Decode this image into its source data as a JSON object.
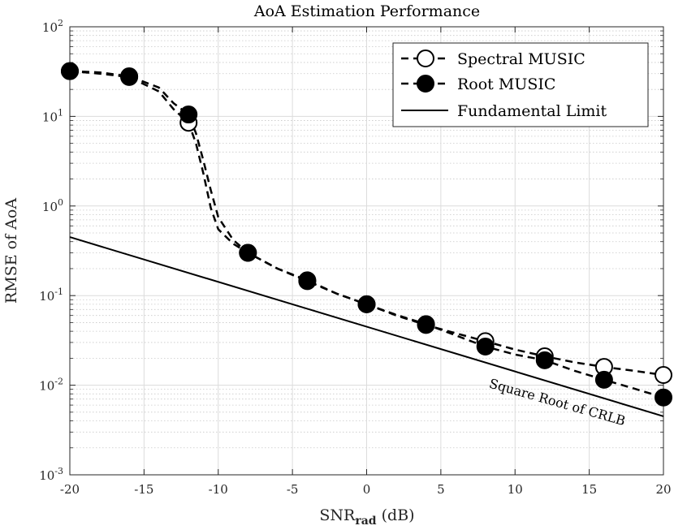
{
  "chart_data": {
    "type": "line",
    "title": "AoA Estimation Performance",
    "xlabel_main": "SNR",
    "xlabel_sub": "rad",
    "xlabel_unit": " (dB)",
    "ylabel": "RMSE of AoA",
    "xlim": [
      -20,
      20
    ],
    "ylim": [
      0.001,
      100
    ],
    "yscale": "log",
    "grid": true,
    "legend_position": "top-right",
    "x_ticks": [
      -20,
      -15,
      -10,
      -5,
      0,
      5,
      10,
      15,
      20
    ],
    "x_tick_labels": [
      "-20",
      "-15",
      "-10",
      "-5",
      "0",
      "5",
      "10",
      "15",
      "20"
    ],
    "y_ticks": [
      {
        "base": "10",
        "exp": "2",
        "value": 100
      },
      {
        "base": "10",
        "exp": "1",
        "value": 10
      },
      {
        "base": "10",
        "exp": "0",
        "value": 1
      },
      {
        "base": "10",
        "exp": "-1",
        "value": 0.1
      },
      {
        "base": "10",
        "exp": "-2",
        "value": 0.01
      },
      {
        "base": "10",
        "exp": "-3",
        "value": 0.001
      }
    ],
    "series": [
      {
        "name": "Spectral MUSIC",
        "style": "dashed",
        "marker": "open-circle",
        "x": [
          -20,
          -16,
          -12,
          -8,
          -4,
          0,
          4,
          8,
          12,
          16,
          20
        ],
        "y": [
          32,
          27.5,
          8.5,
          0.3,
          0.145,
          0.08,
          0.047,
          0.031,
          0.021,
          0.016,
          0.013
        ],
        "curve_x": [
          -20,
          -18,
          -16,
          -14,
          -13,
          -12,
          -11.5,
          -11,
          -10.5,
          -10,
          -9,
          -8,
          -6,
          -4,
          -2,
          0,
          2,
          4,
          6,
          8,
          10,
          12,
          14,
          16,
          18,
          20
        ],
        "curve_y": [
          32,
          30,
          27.5,
          19,
          12,
          8.5,
          5,
          2.3,
          0.95,
          0.55,
          0.38,
          0.3,
          0.2,
          0.145,
          0.105,
          0.08,
          0.06,
          0.047,
          0.038,
          0.031,
          0.025,
          0.021,
          0.018,
          0.016,
          0.0145,
          0.013
        ]
      },
      {
        "name": "Root MUSIC",
        "style": "dashed",
        "marker": "filled-circle",
        "x": [
          -20,
          -16,
          -12,
          -8,
          -4,
          0,
          4,
          8,
          12,
          16,
          20
        ],
        "y": [
          32,
          28,
          10.5,
          0.3,
          0.148,
          0.08,
          0.048,
          0.027,
          0.019,
          0.0115,
          0.0073
        ],
        "curve_x": [
          -20,
          -18,
          -16,
          -14,
          -13,
          -12,
          -11.5,
          -11,
          -10.5,
          -10,
          -9,
          -8,
          -6,
          -4,
          -2,
          0,
          2,
          4,
          6,
          8,
          10,
          12,
          14,
          16,
          18,
          20
        ],
        "curve_y": [
          32,
          31,
          28,
          21,
          14,
          10.5,
          6.5,
          3.2,
          1.5,
          0.75,
          0.42,
          0.3,
          0.2,
          0.148,
          0.105,
          0.08,
          0.061,
          0.048,
          0.036,
          0.027,
          0.022,
          0.019,
          0.0145,
          0.0115,
          0.0092,
          0.0073
        ]
      },
      {
        "name": "Fundamental Limit",
        "style": "solid",
        "marker": "none",
        "x": [
          -20,
          20
        ],
        "y": [
          0.45,
          0.0045
        ]
      }
    ],
    "annotations": [
      {
        "text": "Square Root of CRLB",
        "x": 8.2,
        "y": 0.0095
      }
    ]
  }
}
